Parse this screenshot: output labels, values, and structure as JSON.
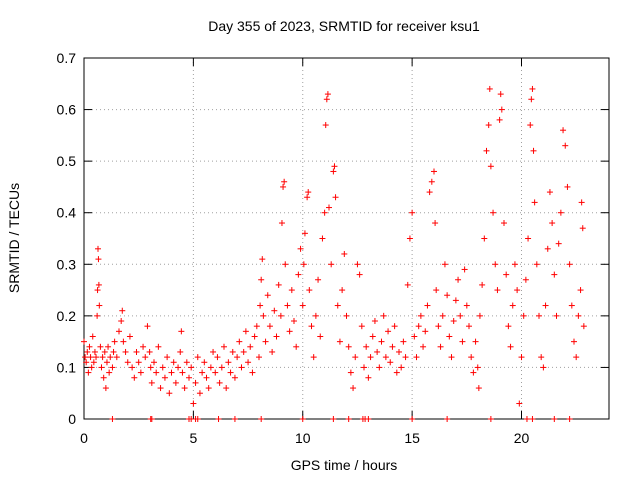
{
  "chart_data": {
    "type": "scatter",
    "title": "Day 355 of 2023, SRMTID for receiver ksu1",
    "xlabel": "GPS time / hours",
    "ylabel": "SRMTID / TECUs",
    "xlim": [
      0,
      24
    ],
    "ylim": [
      0,
      0.7
    ],
    "xticks": [
      0,
      5,
      10,
      15,
      20
    ],
    "yticks": [
      0,
      0.1,
      0.2,
      0.3,
      0.4,
      0.5,
      0.6,
      0.7
    ],
    "grid": true,
    "marker": "+",
    "color": "#ff0000",
    "series": [
      {
        "name": "SRMTID ksu1",
        "points": [
          [
            0.0,
            0.15
          ],
          [
            0.05,
            0.12
          ],
          [
            0.1,
            0.11
          ],
          [
            0.15,
            0.13
          ],
          [
            0.2,
            0.09
          ],
          [
            0.25,
            0.14
          ],
          [
            0.3,
            0.12
          ],
          [
            0.35,
            0.1
          ],
          [
            0.4,
            0.16
          ],
          [
            0.45,
            0.11
          ],
          [
            0.5,
            0.13
          ],
          [
            0.55,
            0.12
          ],
          [
            0.6,
            0.2
          ],
          [
            0.62,
            0.25
          ],
          [
            0.64,
            0.33
          ],
          [
            0.66,
            0.31
          ],
          [
            0.68,
            0.26
          ],
          [
            0.7,
            0.22
          ],
          [
            0.75,
            0.14
          ],
          [
            0.8,
            0.1
          ],
          [
            0.85,
            0.12
          ],
          [
            0.9,
            0.08
          ],
          [
            0.95,
            0.13
          ],
          [
            1.0,
            0.06
          ],
          [
            1.05,
            0.11
          ],
          [
            1.1,
            0.14
          ],
          [
            1.15,
            0.09
          ],
          [
            1.2,
            0.12
          ],
          [
            1.3,
            0.1
          ],
          [
            1.35,
            0.13
          ],
          [
            1.4,
            0.15
          ],
          [
            1.5,
            0.12
          ],
          [
            1.6,
            0.17
          ],
          [
            1.7,
            0.19
          ],
          [
            1.75,
            0.21
          ],
          [
            1.8,
            0.15
          ],
          [
            1.9,
            0.13
          ],
          [
            2.0,
            0.11
          ],
          [
            2.1,
            0.16
          ],
          [
            2.2,
            0.1
          ],
          [
            2.3,
            0.08
          ],
          [
            2.4,
            0.13
          ],
          [
            2.5,
            0.11
          ],
          [
            2.6,
            0.09
          ],
          [
            2.7,
            0.14
          ],
          [
            2.8,
            0.12
          ],
          [
            2.9,
            0.18
          ],
          [
            3.0,
            0.13
          ],
          [
            3.05,
            0.1
          ],
          [
            3.1,
            0.07
          ],
          [
            3.2,
            0.11
          ],
          [
            3.3,
            0.09
          ],
          [
            3.4,
            0.14
          ],
          [
            3.5,
            0.06
          ],
          [
            3.6,
            0.1
          ],
          [
            3.7,
            0.08
          ],
          [
            3.8,
            0.12
          ],
          [
            3.9,
            0.05
          ],
          [
            4.0,
            0.09
          ],
          [
            4.1,
            0.11
          ],
          [
            4.2,
            0.07
          ],
          [
            4.3,
            0.1
          ],
          [
            4.4,
            0.13
          ],
          [
            4.45,
            0.17
          ],
          [
            4.5,
            0.09
          ],
          [
            4.6,
            0.06
          ],
          [
            4.7,
            0.11
          ],
          [
            4.8,
            0.08
          ],
          [
            4.9,
            0.1
          ],
          [
            5.0,
            0.03
          ],
          [
            5.1,
            0.07
          ],
          [
            5.2,
            0.12
          ],
          [
            5.3,
            0.05
          ],
          [
            5.4,
            0.09
          ],
          [
            5.5,
            0.11
          ],
          [
            5.6,
            0.08
          ],
          [
            5.7,
            0.06
          ],
          [
            5.8,
            0.1
          ],
          [
            5.9,
            0.13
          ],
          [
            6.0,
            0.09
          ],
          [
            6.1,
            0.12
          ],
          [
            6.2,
            0.07
          ],
          [
            6.3,
            0.1
          ],
          [
            6.4,
            0.14
          ],
          [
            6.5,
            0.06
          ],
          [
            6.6,
            0.11
          ],
          [
            6.7,
            0.09
          ],
          [
            6.8,
            0.13
          ],
          [
            6.9,
            0.08
          ],
          [
            7.0,
            0.12
          ],
          [
            7.1,
            0.15
          ],
          [
            7.2,
            0.1
          ],
          [
            7.3,
            0.13
          ],
          [
            7.4,
            0.17
          ],
          [
            7.5,
            0.11
          ],
          [
            7.6,
            0.14
          ],
          [
            7.7,
            0.09
          ],
          [
            7.8,
            0.16
          ],
          [
            7.9,
            0.18
          ],
          [
            8.0,
            0.12
          ],
          [
            8.05,
            0.22
          ],
          [
            8.1,
            0.27
          ],
          [
            8.15,
            0.31
          ],
          [
            8.2,
            0.2
          ],
          [
            8.3,
            0.15
          ],
          [
            8.4,
            0.24
          ],
          [
            8.5,
            0.18
          ],
          [
            8.6,
            0.13
          ],
          [
            8.7,
            0.21
          ],
          [
            8.8,
            0.16
          ],
          [
            8.9,
            0.26
          ],
          [
            9.0,
            0.2
          ],
          [
            9.05,
            0.38
          ],
          [
            9.1,
            0.45
          ],
          [
            9.15,
            0.46
          ],
          [
            9.2,
            0.3
          ],
          [
            9.3,
            0.22
          ],
          [
            9.4,
            0.17
          ],
          [
            9.5,
            0.25
          ],
          [
            9.6,
            0.19
          ],
          [
            9.7,
            0.14
          ],
          [
            9.8,
            0.28
          ],
          [
            9.9,
            0.33
          ],
          [
            10.0,
            0.22
          ],
          [
            10.05,
            0.3
          ],
          [
            10.1,
            0.36
          ],
          [
            10.2,
            0.43
          ],
          [
            10.25,
            0.44
          ],
          [
            10.3,
            0.25
          ],
          [
            10.4,
            0.18
          ],
          [
            10.5,
            0.12
          ],
          [
            10.6,
            0.2
          ],
          [
            10.7,
            0.27
          ],
          [
            10.8,
            0.16
          ],
          [
            10.9,
            0.35
          ],
          [
            11.0,
            0.4
          ],
          [
            11.05,
            0.57
          ],
          [
            11.1,
            0.62
          ],
          [
            11.15,
            0.63
          ],
          [
            11.2,
            0.41
          ],
          [
            11.3,
            0.3
          ],
          [
            11.4,
            0.48
          ],
          [
            11.45,
            0.49
          ],
          [
            11.5,
            0.43
          ],
          [
            11.6,
            0.22
          ],
          [
            11.7,
            0.15
          ],
          [
            11.8,
            0.25
          ],
          [
            11.9,
            0.32
          ],
          [
            12.0,
            0.2
          ],
          [
            12.1,
            0.14
          ],
          [
            12.2,
            0.09
          ],
          [
            12.3,
            0.06
          ],
          [
            12.4,
            0.12
          ],
          [
            12.5,
            0.3
          ],
          [
            12.6,
            0.28
          ],
          [
            12.7,
            0.18
          ],
          [
            12.8,
            0.1
          ],
          [
            12.9,
            0.14
          ],
          [
            13.0,
            0.08
          ],
          [
            13.1,
            0.12
          ],
          [
            13.2,
            0.16
          ],
          [
            13.3,
            0.19
          ],
          [
            13.4,
            0.13
          ],
          [
            13.5,
            0.1
          ],
          [
            13.6,
            0.15
          ],
          [
            13.7,
            0.2
          ],
          [
            13.8,
            0.12
          ],
          [
            13.9,
            0.17
          ],
          [
            14.0,
            0.11
          ],
          [
            14.1,
            0.14
          ],
          [
            14.2,
            0.18
          ],
          [
            14.3,
            0.09
          ],
          [
            14.4,
            0.13
          ],
          [
            14.5,
            0.1
          ],
          [
            14.6,
            0.15
          ],
          [
            14.7,
            0.12
          ],
          [
            14.8,
            0.26
          ],
          [
            14.9,
            0.35
          ],
          [
            15.0,
            0.4
          ],
          [
            15.1,
            0.16
          ],
          [
            15.2,
            0.12
          ],
          [
            15.3,
            0.18
          ],
          [
            15.4,
            0.2
          ],
          [
            15.5,
            0.14
          ],
          [
            15.6,
            0.17
          ],
          [
            15.7,
            0.22
          ],
          [
            15.8,
            0.44
          ],
          [
            15.9,
            0.46
          ],
          [
            16.0,
            0.48
          ],
          [
            16.05,
            0.38
          ],
          [
            16.1,
            0.25
          ],
          [
            16.2,
            0.18
          ],
          [
            16.3,
            0.14
          ],
          [
            16.4,
            0.2
          ],
          [
            16.5,
            0.3
          ],
          [
            16.6,
            0.24
          ],
          [
            16.7,
            0.16
          ],
          [
            16.8,
            0.12
          ],
          [
            16.9,
            0.19
          ],
          [
            17.0,
            0.23
          ],
          [
            17.1,
            0.27
          ],
          [
            17.2,
            0.2
          ],
          [
            17.3,
            0.15
          ],
          [
            17.4,
            0.29
          ],
          [
            17.5,
            0.22
          ],
          [
            17.6,
            0.18
          ],
          [
            17.7,
            0.12
          ],
          [
            17.8,
            0.09
          ],
          [
            17.9,
            0.15
          ],
          [
            18.0,
            0.1
          ],
          [
            18.05,
            0.06
          ],
          [
            18.1,
            0.2
          ],
          [
            18.2,
            0.26
          ],
          [
            18.3,
            0.35
          ],
          [
            18.4,
            0.52
          ],
          [
            18.5,
            0.57
          ],
          [
            18.55,
            0.64
          ],
          [
            18.6,
            0.49
          ],
          [
            18.7,
            0.4
          ],
          [
            18.8,
            0.3
          ],
          [
            18.9,
            0.25
          ],
          [
            19.0,
            0.58
          ],
          [
            19.05,
            0.63
          ],
          [
            19.1,
            0.6
          ],
          [
            19.2,
            0.38
          ],
          [
            19.3,
            0.28
          ],
          [
            19.4,
            0.18
          ],
          [
            19.5,
            0.14
          ],
          [
            19.6,
            0.22
          ],
          [
            19.7,
            0.3
          ],
          [
            19.8,
            0.25
          ],
          [
            19.9,
            0.03
          ],
          [
            20.0,
            0.12
          ],
          [
            20.1,
            0.2
          ],
          [
            20.2,
            0.27
          ],
          [
            20.3,
            0.35
          ],
          [
            20.4,
            0.57
          ],
          [
            20.45,
            0.62
          ],
          [
            20.5,
            0.64
          ],
          [
            20.55,
            0.52
          ],
          [
            20.6,
            0.42
          ],
          [
            20.7,
            0.3
          ],
          [
            20.8,
            0.2
          ],
          [
            20.9,
            0.12
          ],
          [
            21.0,
            0.1
          ],
          [
            21.1,
            0.22
          ],
          [
            21.2,
            0.33
          ],
          [
            21.3,
            0.44
          ],
          [
            21.4,
            0.38
          ],
          [
            21.5,
            0.28
          ],
          [
            21.6,
            0.2
          ],
          [
            21.7,
            0.34
          ],
          [
            21.8,
            0.4
          ],
          [
            21.9,
            0.56
          ],
          [
            22.0,
            0.53
          ],
          [
            22.1,
            0.45
          ],
          [
            22.2,
            0.3
          ],
          [
            22.3,
            0.22
          ],
          [
            22.4,
            0.15
          ],
          [
            22.5,
            0.12
          ],
          [
            22.6,
            0.2
          ],
          [
            22.7,
            0.25
          ],
          [
            22.75,
            0.42
          ],
          [
            22.8,
            0.37
          ],
          [
            22.85,
            0.18
          ]
        ],
        "zero_points": [
          1.3,
          3.05,
          3.1,
          4.8,
          4.9,
          5.1,
          5.2,
          6.15,
          6.9,
          8.1,
          10.0,
          11.4,
          12.1,
          12.75,
          12.85,
          13.0,
          15.0,
          16.6,
          18.6,
          20.25,
          20.5,
          21.5,
          22.2
        ]
      }
    ]
  }
}
